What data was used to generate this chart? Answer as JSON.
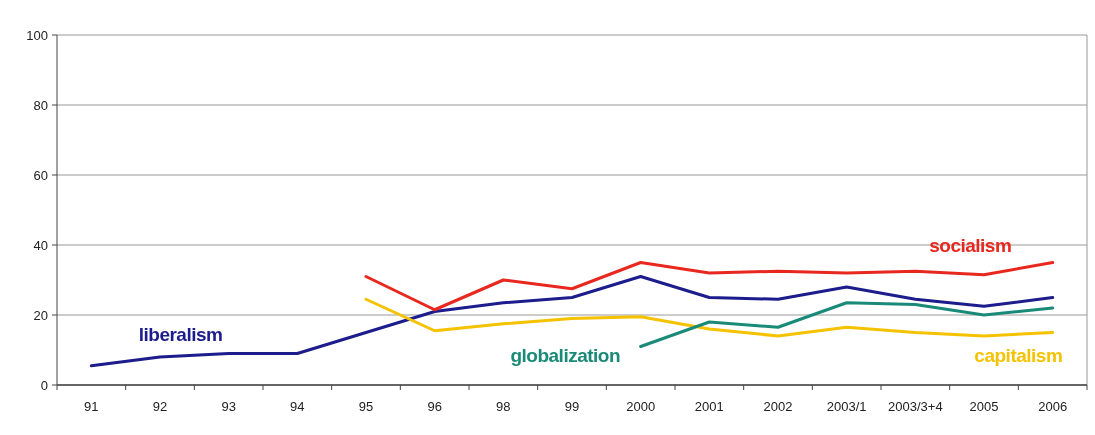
{
  "chart_data": {
    "type": "line",
    "categories": [
      "91",
      "92",
      "93",
      "94",
      "95",
      "96",
      "98",
      "99",
      "2000",
      "2001",
      "2002",
      "2003/1",
      "2003/3+4",
      "2005",
      "2006"
    ],
    "series": [
      {
        "name": "liberalism",
        "color": "#1c1c8c",
        "values": [
          5.5,
          8,
          9,
          9,
          15,
          21,
          23.5,
          25,
          31,
          25,
          24.5,
          28,
          24.5,
          22.5,
          25
        ]
      },
      {
        "name": "socialism",
        "color": "#e8281e",
        "values": [
          null,
          null,
          null,
          null,
          31,
          21.5,
          30,
          27.5,
          35,
          32,
          32.5,
          32,
          32.5,
          31.5,
          35
        ]
      },
      {
        "name": "capitalism",
        "color": "#f5c200",
        "values": [
          null,
          null,
          null,
          null,
          24.5,
          15.5,
          17.5,
          19,
          19.5,
          16,
          14,
          16.5,
          15,
          14,
          15
        ]
      },
      {
        "name": "globalization",
        "color": "#1a8a78",
        "values": [
          null,
          null,
          null,
          null,
          null,
          null,
          null,
          null,
          11,
          18,
          16.5,
          23.5,
          23,
          20,
          22
        ]
      }
    ],
    "ylim": [
      0,
      100
    ],
    "yticks": [
      0,
      20,
      40,
      60,
      80,
      100
    ],
    "grid": "y",
    "legend": false,
    "marker": "none",
    "line_style": "solid"
  }
}
